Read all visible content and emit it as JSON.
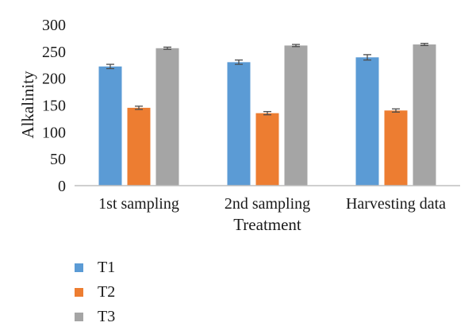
{
  "chart_data": {
    "type": "bar",
    "xlabel": "Treatment",
    "ylabel": "Alkalinity",
    "ylim": [
      0,
      300
    ],
    "yticks": [
      "0",
      "50",
      "100",
      "150",
      "200",
      "250",
      "300"
    ],
    "categories": [
      "1st sampling",
      "2nd sampling",
      "Harvesting data"
    ],
    "series": [
      {
        "name": "T1",
        "color": "#5b9bd5",
        "values": [
          222,
          230,
          239
        ],
        "errors": [
          4,
          4,
          5
        ]
      },
      {
        "name": "T2",
        "color": "#ed7d31",
        "values": [
          145,
          135,
          140
        ],
        "errors": [
          3,
          3,
          3
        ]
      },
      {
        "name": "T3",
        "color": "#a5a5a5",
        "values": [
          256,
          261,
          263
        ],
        "errors": [
          2,
          2,
          2
        ]
      }
    ],
    "grid": false,
    "legend_position": "bottom-left"
  }
}
